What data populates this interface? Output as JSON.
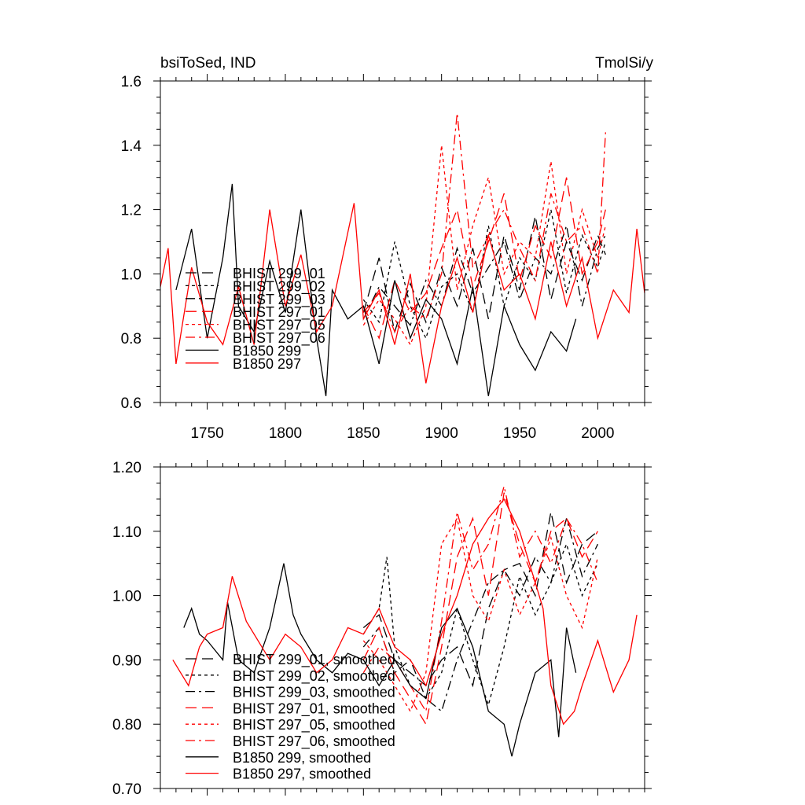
{
  "chart_data": [
    {
      "type": "line",
      "left_title": "bsiToSed, IND",
      "right_title": "TmolSi/y",
      "xlim": [
        1720,
        2030
      ],
      "ylim": [
        0.6,
        1.6
      ],
      "xticks": [
        "1750",
        "1800",
        "1850",
        "1900",
        "1950",
        "2000"
      ],
      "yticks": [
        "0.6",
        "0.8",
        "1.0",
        "1.2",
        "1.4",
        "1.6"
      ],
      "legend_position": "lower-left",
      "series": [
        {
          "name": "BHIST 299_01",
          "color": "#000000",
          "dash": "longdash",
          "x": [
            1850,
            1860,
            1870,
            1880,
            1890,
            1900,
            1910,
            1920,
            1930,
            1940,
            1950,
            1960,
            1970,
            1980,
            1990,
            2000,
            2005
          ],
          "y": [
            0.88,
            1.05,
            0.82,
            0.97,
            0.85,
            1.02,
            0.9,
            1.08,
            0.86,
            1.12,
            0.95,
            1.18,
            0.92,
            1.1,
            0.98,
            1.12,
            1.06
          ]
        },
        {
          "name": "BHIST 299_02",
          "color": "#000000",
          "dash": "shortdash",
          "x": [
            1850,
            1860,
            1870,
            1880,
            1890,
            1900,
            1910,
            1920,
            1930,
            1940,
            1950,
            1960,
            1970,
            1980,
            1990,
            2000,
            2005
          ],
          "y": [
            0.92,
            0.85,
            1.1,
            0.9,
            0.8,
            0.96,
            1.0,
            0.88,
            1.15,
            0.9,
            1.05,
            0.98,
            1.2,
            0.94,
            1.12,
            1.02,
            1.1
          ]
        },
        {
          "name": "BHIST 299_03",
          "color": "#000000",
          "dash": "dashdot",
          "x": [
            1850,
            1860,
            1870,
            1880,
            1890,
            1900,
            1910,
            1920,
            1930,
            1940,
            1950,
            1960,
            1970,
            1980,
            1990,
            2000,
            2005
          ],
          "y": [
            0.86,
            0.96,
            0.9,
            0.84,
            0.98,
            0.9,
            1.08,
            0.94,
            1.02,
            1.1,
            0.92,
            1.05,
            1.0,
            1.15,
            0.9,
            1.08,
            1.12
          ]
        },
        {
          "name": "BHIST 297_01",
          "color": "#ff0000",
          "dash": "longdash",
          "x": [
            1850,
            1860,
            1870,
            1880,
            1890,
            1900,
            1910,
            1920,
            1930,
            1940,
            1950,
            1960,
            1970,
            1980,
            1990,
            2000,
            2005
          ],
          "y": [
            0.9,
            0.8,
            0.98,
            0.88,
            0.94,
            1.08,
            1.2,
            0.96,
            1.1,
            1.25,
            0.98,
            1.15,
            1.05,
            1.3,
            1.0,
            1.1,
            1.2
          ]
        },
        {
          "name": "BHIST 297_05",
          "color": "#ff0000",
          "dash": "shortdash",
          "x": [
            1850,
            1860,
            1870,
            1880,
            1890,
            1900,
            1910,
            1920,
            1930,
            1940,
            1950,
            1960,
            1970,
            1980,
            1990,
            2000,
            2005
          ],
          "y": [
            0.84,
            0.92,
            0.86,
            0.78,
            0.9,
            1.4,
            0.95,
            1.15,
            1.3,
            1.0,
            1.1,
            1.05,
            1.35,
            1.0,
            1.2,
            1.05,
            1.15
          ]
        },
        {
          "name": "BHIST 297_06",
          "color": "#ff0000",
          "dash": "dashdot",
          "x": [
            1850,
            1860,
            1870,
            1880,
            1890,
            1900,
            1910,
            1920,
            1930,
            1940,
            1950,
            1960,
            1970,
            1980,
            1990,
            2000,
            2005
          ],
          "y": [
            0.88,
            0.94,
            0.82,
            0.9,
            0.86,
            1.0,
            1.5,
            1.02,
            1.12,
            1.2,
            1.08,
            0.98,
            1.25,
            1.1,
            1.15,
            1.0,
            1.44
          ]
        },
        {
          "name": "B1850 299",
          "color": "#000000",
          "dash": "solid",
          "x": [
            1730,
            1740,
            1750,
            1760,
            1766,
            1770,
            1780,
            1790,
            1800,
            1810,
            1820,
            1826,
            1830,
            1840,
            1850,
            1860,
            1870,
            1880,
            1890,
            1900,
            1910,
            1920,
            1930,
            1940,
            1950,
            1960,
            1970,
            1980,
            1986
          ],
          "y": [
            0.95,
            1.14,
            0.8,
            1.05,
            1.28,
            0.9,
            0.82,
            1.04,
            0.88,
            1.2,
            0.8,
            0.62,
            0.95,
            0.86,
            0.9,
            0.72,
            0.98,
            0.8,
            0.92,
            0.86,
            0.72,
            0.96,
            0.62,
            0.9,
            0.78,
            0.7,
            0.82,
            0.76,
            0.86
          ]
        },
        {
          "name": "B1850 297",
          "color": "#ff0000",
          "dash": "solid",
          "x": [
            1720,
            1725,
            1730,
            1740,
            1750,
            1760,
            1770,
            1780,
            1790,
            1800,
            1810,
            1820,
            1830,
            1844,
            1850,
            1860,
            1870,
            1880,
            1890,
            1900,
            1910,
            1920,
            1930,
            1940,
            1950,
            1960,
            1970,
            1980,
            1990,
            2000,
            2010,
            2020,
            2025,
            2030
          ],
          "y": [
            0.96,
            1.08,
            0.72,
            1.02,
            0.85,
            0.78,
            0.96,
            0.78,
            1.2,
            0.9,
            1.06,
            0.82,
            0.9,
            1.22,
            0.86,
            0.95,
            0.78,
            1.0,
            0.66,
            0.9,
            1.05,
            0.88,
            1.12,
            0.95,
            1.0,
            0.86,
            1.1,
            0.9,
            1.05,
            0.8,
            0.95,
            0.88,
            1.14,
            0.94
          ]
        }
      ]
    },
    {
      "type": "line",
      "xlim": [
        1720,
        2030
      ],
      "ylim": [
        0.7,
        1.2
      ],
      "yticks": [
        "0.70",
        "0.80",
        "0.90",
        "1.00",
        "1.10",
        "1.20"
      ],
      "legend_position": "lower-left",
      "series": [
        {
          "name": "BHIST 299_01, smoothed",
          "color": "#000000",
          "dash": "longdash",
          "x": [
            1850,
            1860,
            1870,
            1880,
            1890,
            1900,
            1910,
            1920,
            1930,
            1940,
            1950,
            1960,
            1970,
            1980,
            1990,
            2000
          ],
          "y": [
            0.95,
            0.97,
            0.9,
            0.88,
            0.86,
            0.9,
            0.92,
            0.86,
            0.98,
            1.04,
            1.05,
            1.0,
            1.13,
            1.02,
            1.08,
            1.1
          ]
        },
        {
          "name": "BHIST 299_02, smoothed",
          "color": "#000000",
          "dash": "shortdash",
          "x": [
            1850,
            1860,
            1865,
            1870,
            1880,
            1890,
            1900,
            1910,
            1920,
            1930,
            1940,
            1950,
            1960,
            1970,
            1980,
            1990,
            2000
          ],
          "y": [
            0.94,
            0.98,
            1.06,
            0.92,
            0.86,
            0.84,
            0.88,
            0.98,
            0.9,
            0.83,
            0.92,
            1.03,
            0.97,
            1.02,
            1.08,
            1.0,
            1.05
          ]
        },
        {
          "name": "BHIST 299_03, smoothed",
          "color": "#000000",
          "dash": "dashdot",
          "x": [
            1850,
            1860,
            1870,
            1880,
            1890,
            1900,
            1910,
            1920,
            1930,
            1940,
            1950,
            1960,
            1970,
            1980,
            1990,
            2000
          ],
          "y": [
            0.92,
            0.95,
            0.88,
            0.9,
            0.84,
            0.82,
            0.9,
            0.96,
            1.02,
            1.04,
            1.0,
            1.06,
            1.02,
            1.12,
            1.03,
            1.08
          ]
        },
        {
          "name": "BHIST 297_01, smoothed",
          "color": "#ff0000",
          "dash": "longdash",
          "x": [
            1850,
            1860,
            1870,
            1880,
            1890,
            1900,
            1910,
            1920,
            1930,
            1940,
            1950,
            1960,
            1970,
            1980,
            1990,
            2000
          ],
          "y": [
            0.9,
            0.95,
            0.88,
            0.84,
            0.8,
            0.92,
            1.06,
            1.12,
            1.0,
            1.16,
            1.08,
            1.02,
            1.1,
            1.12,
            1.06,
            1.1
          ]
        },
        {
          "name": "BHIST 297_05, smoothed",
          "color": "#ff0000",
          "dash": "shortdash",
          "x": [
            1850,
            1860,
            1870,
            1880,
            1890,
            1900,
            1910,
            1920,
            1930,
            1940,
            1950,
            1960,
            1970,
            1980,
            1990,
            2000
          ],
          "y": [
            0.93,
            0.9,
            0.86,
            0.82,
            0.88,
            1.08,
            1.12,
            1.0,
            0.96,
            1.04,
            0.97,
            1.02,
            1.09,
            1.0,
            0.95,
            1.06
          ]
        },
        {
          "name": "BHIST 297_06, smoothed",
          "color": "#ff0000",
          "dash": "dashdot",
          "x": [
            1850,
            1860,
            1870,
            1880,
            1890,
            1900,
            1910,
            1920,
            1930,
            1940,
            1950,
            1960,
            1970,
            1980,
            1990,
            2000
          ],
          "y": [
            0.88,
            0.92,
            0.9,
            0.86,
            0.82,
            0.96,
            1.13,
            1.04,
            1.08,
            1.17,
            1.06,
            1.1,
            1.05,
            1.12,
            1.08,
            1.02
          ]
        },
        {
          "name": "B1850 299, smoothed",
          "color": "#000000",
          "dash": "solid",
          "x": [
            1735,
            1740,
            1745,
            1750,
            1760,
            1763,
            1770,
            1780,
            1790,
            1799,
            1805,
            1810,
            1820,
            1830,
            1840,
            1850,
            1860,
            1870,
            1880,
            1890,
            1900,
            1910,
            1920,
            1930,
            1940,
            1945,
            1950,
            1960,
            1970,
            1975,
            1980,
            1986
          ],
          "y": [
            0.95,
            0.98,
            0.94,
            0.93,
            0.9,
            0.99,
            0.9,
            0.88,
            0.95,
            1.05,
            0.97,
            0.94,
            0.9,
            0.88,
            0.91,
            0.9,
            0.86,
            0.9,
            0.86,
            0.84,
            0.95,
            0.98,
            0.92,
            0.82,
            0.8,
            0.75,
            0.8,
            0.88,
            0.9,
            0.78,
            0.95,
            0.88
          ]
        },
        {
          "name": "B1850 297, smoothed",
          "color": "#ff0000",
          "dash": "solid",
          "x": [
            1728,
            1733,
            1738,
            1745,
            1750,
            1760,
            1766,
            1775,
            1790,
            1800,
            1810,
            1820,
            1830,
            1840,
            1850,
            1860,
            1870,
            1880,
            1890,
            1900,
            1910,
            1920,
            1930,
            1940,
            1950,
            1960,
            1965,
            1970,
            1978,
            1985,
            1990,
            2000,
            2010,
            2020,
            2025
          ],
          "y": [
            0.9,
            0.88,
            0.86,
            0.92,
            0.94,
            0.95,
            1.03,
            0.96,
            0.9,
            0.94,
            0.92,
            0.88,
            0.9,
            0.95,
            0.94,
            0.98,
            0.92,
            0.9,
            0.86,
            0.94,
            1.0,
            1.08,
            1.12,
            1.15,
            1.1,
            1.02,
            0.98,
            0.86,
            0.8,
            0.82,
            0.86,
            0.93,
            0.85,
            0.9,
            0.97
          ]
        }
      ]
    }
  ]
}
